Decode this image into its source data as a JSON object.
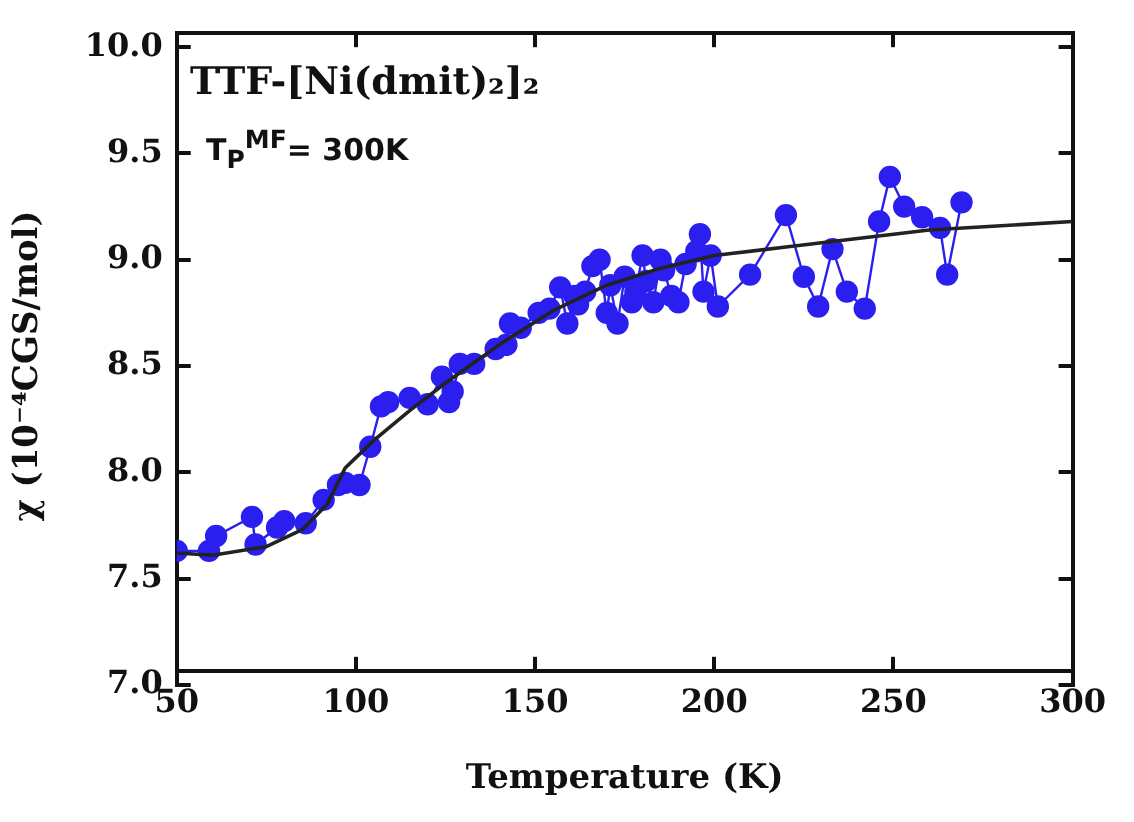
{
  "chart_data": {
    "type": "line",
    "xlabel": "Temperature (K)",
    "ylabel": "χ (10⁻⁴CGS/mol)",
    "annotations": [
      "TTF-[Ni(dmit)₂]₂",
      "T$_{P}$$^{MF}$= 300K"
    ],
    "xlim": [
      50,
      300
    ],
    "xticks": [
      50,
      100,
      150,
      200,
      250,
      300
    ],
    "ylim": [
      7,
      10
    ],
    "yticks": [
      {
        "value": 7,
        "label": "7.0"
      },
      7.5,
      {
        "value": 8,
        "label": "8.0"
      },
      8.5,
      {
        "value": 9,
        "label": "9.0"
      },
      9.5,
      {
        "value": 10,
        "label": "10.0"
      }
    ],
    "grid": false,
    "legend": false,
    "series": [
      {
        "type": "line",
        "marker": "circle",
        "color": "#2b1ff0",
        "x": [
          50,
          59,
          61,
          71,
          72,
          78,
          80,
          86,
          91,
          95,
          97,
          101,
          104,
          107,
          109,
          115,
          120,
          124,
          126,
          127,
          129,
          133,
          139,
          142,
          143,
          146,
          151,
          154,
          157,
          159,
          161,
          162,
          164,
          166,
          168,
          170,
          171,
          173,
          175,
          177,
          178,
          180,
          181,
          183,
          185,
          186,
          188,
          190,
          192,
          195,
          196,
          197,
          199,
          201,
          210,
          220,
          225,
          229,
          233,
          237,
          242,
          246,
          249,
          253,
          258,
          263,
          265,
          269
        ],
        "values": [
          7.63,
          7.63,
          7.7,
          7.79,
          7.66,
          7.74,
          7.77,
          7.76,
          7.87,
          7.94,
          7.95,
          7.94,
          8.12,
          8.31,
          8.33,
          8.35,
          8.32,
          8.45,
          8.33,
          8.38,
          8.51,
          8.51,
          8.58,
          8.6,
          8.7,
          8.68,
          8.75,
          8.77,
          8.87,
          8.7,
          8.83,
          8.79,
          8.85,
          8.97,
          9.0,
          8.75,
          8.88,
          8.7,
          8.92,
          8.8,
          8.85,
          9.02,
          8.9,
          8.8,
          9.0,
          8.95,
          8.83,
          8.8,
          8.98,
          9.04,
          9.12,
          8.85,
          9.02,
          8.78,
          8.93,
          9.21,
          8.92,
          8.78,
          9.05,
          8.85,
          8.77,
          9.18,
          9.39,
          9.25,
          9.2,
          9.15,
          8.93,
          9.27
        ]
      },
      {
        "type": "line",
        "marker": "none",
        "color": "#222222",
        "x": [
          50,
          60,
          75,
          85,
          92,
          97,
          105,
          115,
          125,
          140,
          155,
          170,
          185,
          200,
          220,
          240,
          260,
          280,
          300
        ],
        "values": [
          7.62,
          7.61,
          7.65,
          7.73,
          7.85,
          8.02,
          8.15,
          8.29,
          8.42,
          8.6,
          8.76,
          8.88,
          8.96,
          9.02,
          9.06,
          9.1,
          9.14,
          9.16,
          9.18
        ]
      }
    ]
  }
}
